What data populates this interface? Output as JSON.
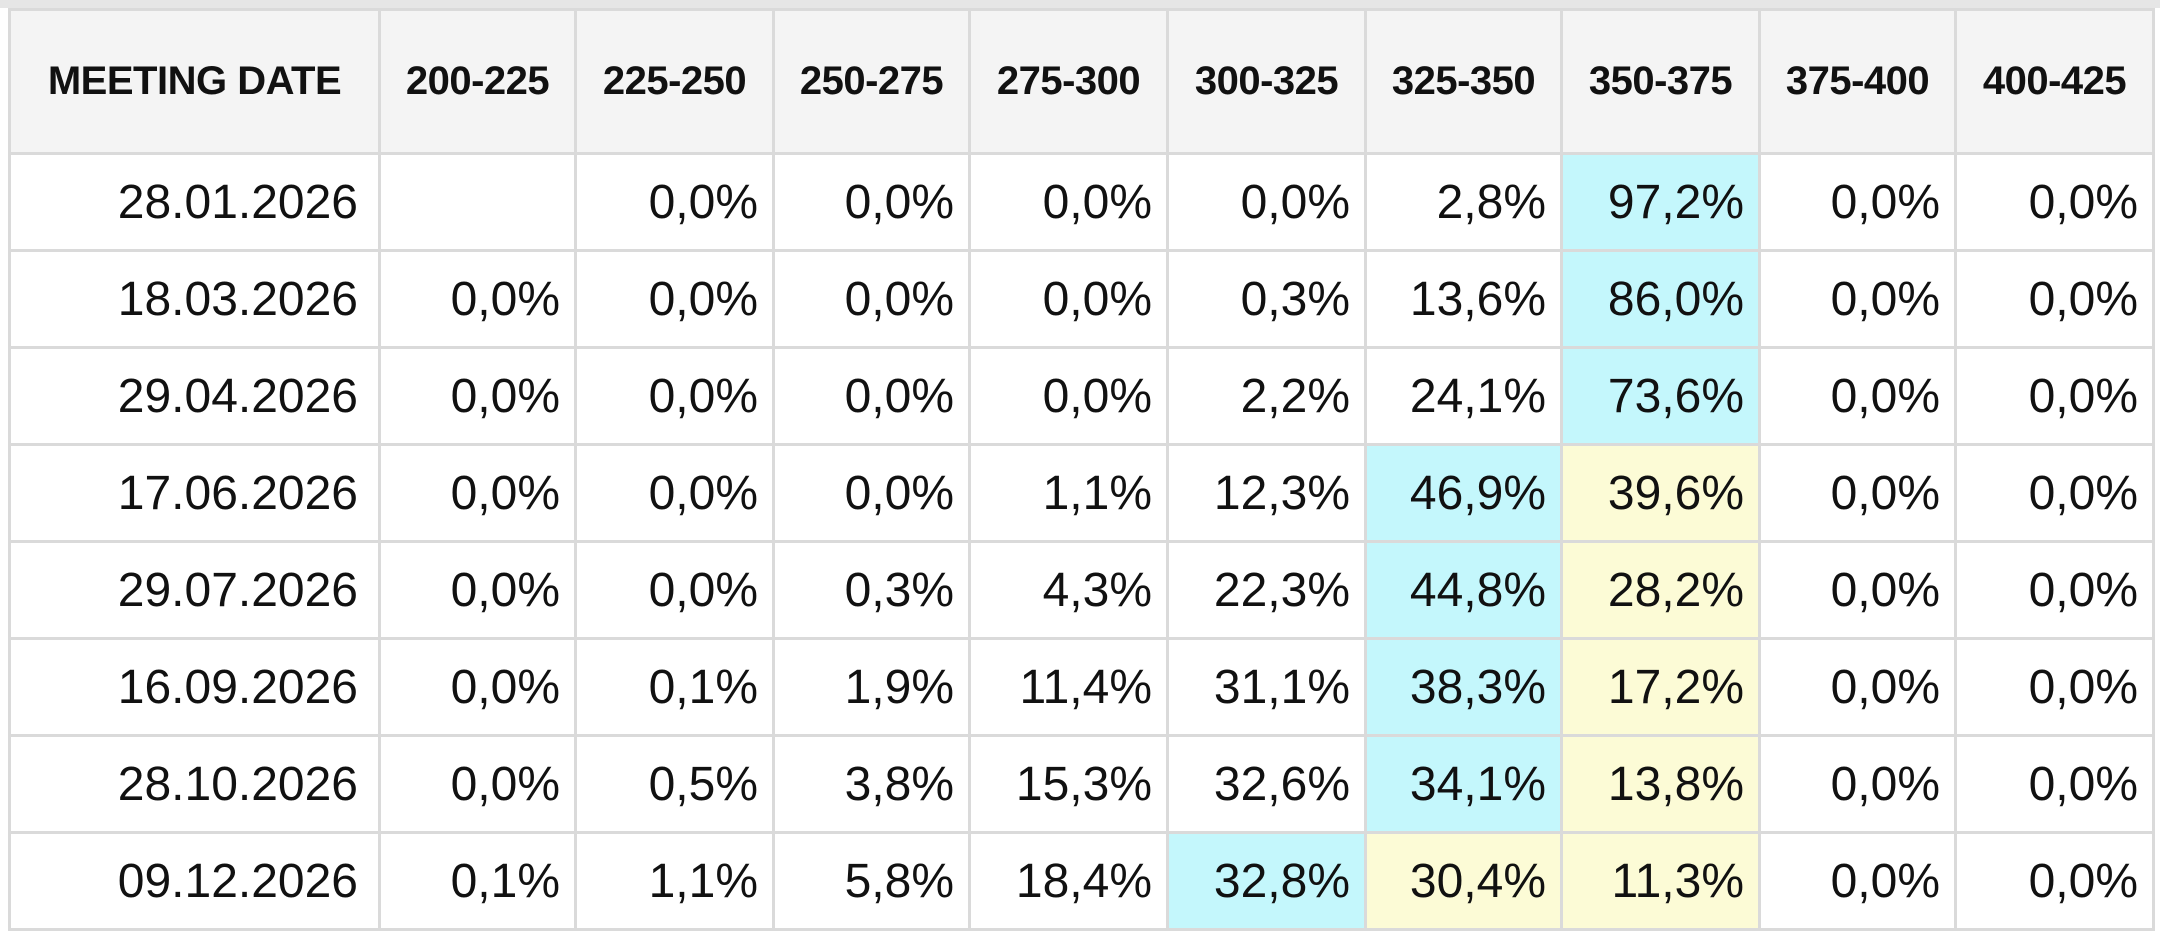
{
  "table": {
    "colors": {
      "highest": "#c4f7fc",
      "second": "#fcfbd6",
      "header_bg": "#f4f4f4",
      "border": "#dadada"
    },
    "headers": [
      "MEETING DATE",
      "200-225",
      "225-250",
      "250-275",
      "275-300",
      "300-325",
      "325-350",
      "350-375",
      "375-400",
      "400-425"
    ],
    "rows": [
      {
        "date": "28.01.2026",
        "cells": [
          "",
          "0,0%",
          "0,0%",
          "0,0%",
          "0,0%",
          "2,8%",
          "97,2%",
          "0,0%",
          "0,0%"
        ],
        "hl": [
          "",
          "",
          "",
          "",
          "",
          "",
          "b",
          "",
          ""
        ]
      },
      {
        "date": "18.03.2026",
        "cells": [
          "0,0%",
          "0,0%",
          "0,0%",
          "0,0%",
          "0,3%",
          "13,6%",
          "86,0%",
          "0,0%",
          "0,0%"
        ],
        "hl": [
          "",
          "",
          "",
          "",
          "",
          "",
          "b",
          "",
          ""
        ]
      },
      {
        "date": "29.04.2026",
        "cells": [
          "0,0%",
          "0,0%",
          "0,0%",
          "0,0%",
          "2,2%",
          "24,1%",
          "73,6%",
          "0,0%",
          "0,0%"
        ],
        "hl": [
          "",
          "",
          "",
          "",
          "",
          "",
          "b",
          "",
          ""
        ]
      },
      {
        "date": "17.06.2026",
        "cells": [
          "0,0%",
          "0,0%",
          "0,0%",
          "1,1%",
          "12,3%",
          "46,9%",
          "39,6%",
          "0,0%",
          "0,0%"
        ],
        "hl": [
          "",
          "",
          "",
          "",
          "",
          "b",
          "y",
          "",
          ""
        ]
      },
      {
        "date": "29.07.2026",
        "cells": [
          "0,0%",
          "0,0%",
          "0,3%",
          "4,3%",
          "22,3%",
          "44,8%",
          "28,2%",
          "0,0%",
          "0,0%"
        ],
        "hl": [
          "",
          "",
          "",
          "",
          "",
          "b",
          "y",
          "",
          ""
        ]
      },
      {
        "date": "16.09.2026",
        "cells": [
          "0,0%",
          "0,1%",
          "1,9%",
          "11,4%",
          "31,1%",
          "38,3%",
          "17,2%",
          "0,0%",
          "0,0%"
        ],
        "hl": [
          "",
          "",
          "",
          "",
          "",
          "b",
          "y",
          "",
          ""
        ]
      },
      {
        "date": "28.10.2026",
        "cells": [
          "0,0%",
          "0,5%",
          "3,8%",
          "15,3%",
          "32,6%",
          "34,1%",
          "13,8%",
          "0,0%",
          "0,0%"
        ],
        "hl": [
          "",
          "",
          "",
          "",
          "",
          "b",
          "y",
          "",
          ""
        ]
      },
      {
        "date": "09.12.2026",
        "cells": [
          "0,1%",
          "1,1%",
          "5,8%",
          "18,4%",
          "32,8%",
          "30,4%",
          "11,3%",
          "0,0%",
          "0,0%"
        ],
        "hl": [
          "",
          "",
          "",
          "",
          "b",
          "y",
          "y",
          "",
          ""
        ]
      }
    ]
  }
}
